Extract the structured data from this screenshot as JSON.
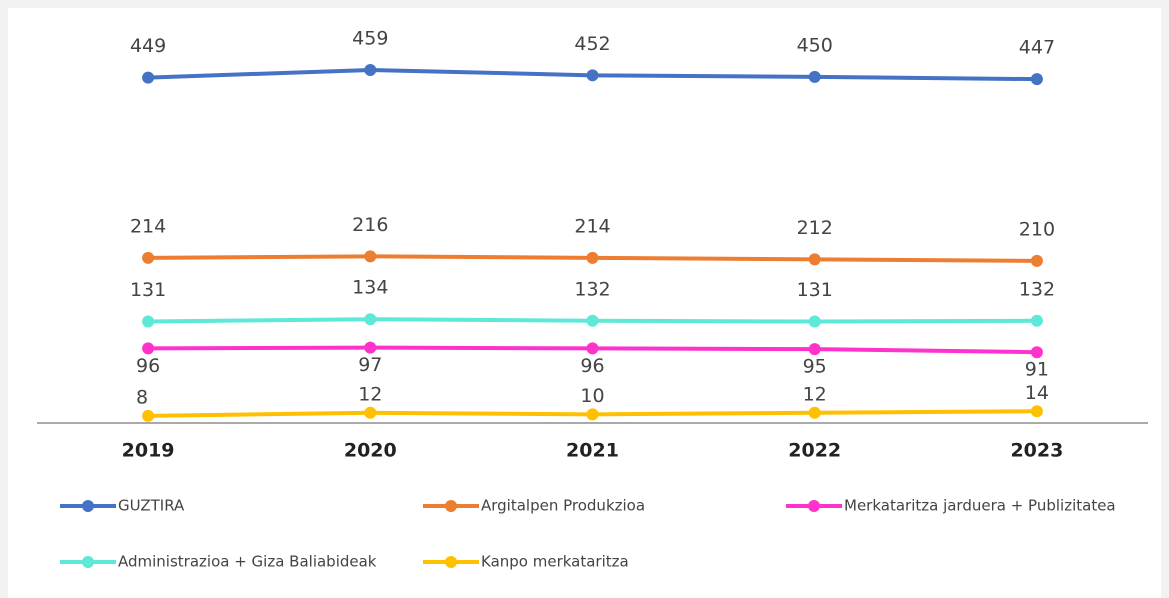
{
  "chart_data": {
    "type": "line",
    "x": [
      "2019",
      "2020",
      "2021",
      "2022",
      "2023"
    ],
    "ylim": [
      0,
      500
    ],
    "series": [
      {
        "name": "GUZTIRA",
        "color": "#4472c4",
        "label_position": "above",
        "values": [
          449,
          459,
          452,
          450,
          447
        ]
      },
      {
        "name": "Argitalpen Produkzioa",
        "color": "#ed7d31",
        "label_position": "above",
        "values": [
          214,
          216,
          214,
          212,
          210
        ]
      },
      {
        "name": "Merkataritza jarduera + Publizitatea",
        "color": "#ff33cc",
        "label_position": "below",
        "values": [
          96,
          97,
          96,
          95,
          91
        ]
      },
      {
        "name": "Administrazioa + Giza Baliabideak",
        "color": "#5ee8d8",
        "label_position": "above",
        "values": [
          131,
          134,
          132,
          131,
          132
        ]
      },
      {
        "name": "Kanpo merkataritza",
        "color": "#ffc000",
        "label_position": "above",
        "values": [
          8,
          12,
          10,
          12,
          14
        ]
      }
    ]
  }
}
